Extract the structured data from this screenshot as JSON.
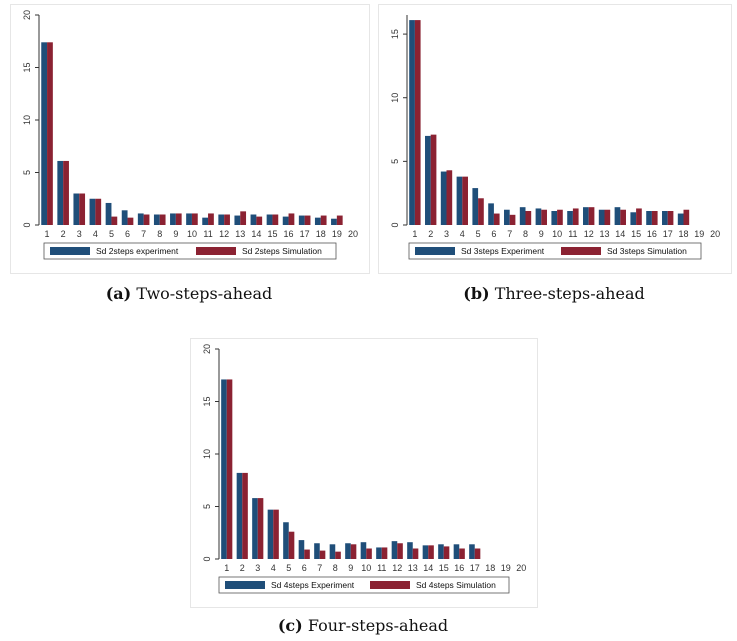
{
  "colors": {
    "experiment": "#1f4e79",
    "simulation": "#8b2232",
    "axis": "#333333"
  },
  "captions": [
    {
      "tag": "(a)",
      "text": "Two-steps-ahead"
    },
    {
      "tag": "(b)",
      "text": "Three-steps-ahead"
    },
    {
      "tag": "(c)",
      "text": "Four-steps-ahead"
    }
  ],
  "chart_data": [
    {
      "type": "bar",
      "categories": [
        "1",
        "2",
        "3",
        "4",
        "5",
        "6",
        "7",
        "8",
        "9",
        "10",
        "11",
        "12",
        "13",
        "14",
        "15",
        "16",
        "17",
        "18",
        "19",
        "20"
      ],
      "ylim": [
        0,
        20
      ],
      "yticks": [
        0,
        5,
        10,
        15,
        20
      ],
      "series": [
        {
          "name": "Sd 2steps experiment",
          "values": [
            17.4,
            6.1,
            3.0,
            2.5,
            2.1,
            1.4,
            1.1,
            1.0,
            1.1,
            1.1,
            0.7,
            1.0,
            0.9,
            1.0,
            1.0,
            0.8,
            0.9,
            0.7,
            0.6,
            null
          ]
        },
        {
          "name": "Sd 2steps Simulation",
          "values": [
            17.4,
            6.1,
            3.0,
            2.5,
            0.8,
            0.7,
            1.0,
            1.0,
            1.1,
            1.1,
            1.1,
            1.0,
            1.3,
            0.8,
            1.0,
            1.1,
            0.9,
            0.9,
            0.9,
            null
          ]
        }
      ]
    },
    {
      "type": "bar",
      "categories": [
        "1",
        "2",
        "3",
        "4",
        "5",
        "6",
        "7",
        "8",
        "9",
        "10",
        "11",
        "12",
        "13",
        "14",
        "15",
        "16",
        "17",
        "18",
        "19",
        "20"
      ],
      "ylim": [
        0,
        16.5
      ],
      "yticks": [
        0,
        5,
        10,
        15
      ],
      "series": [
        {
          "name": "Sd 3steps Experiment",
          "values": [
            16.1,
            7.0,
            4.2,
            3.8,
            2.9,
            1.7,
            1.2,
            1.4,
            1.3,
            1.1,
            1.1,
            1.4,
            1.2,
            1.4,
            1.0,
            1.1,
            1.1,
            0.9,
            null,
            null
          ]
        },
        {
          "name": "Sd 3steps Simulation",
          "values": [
            16.1,
            7.1,
            4.3,
            3.8,
            2.1,
            0.9,
            0.8,
            1.1,
            1.2,
            1.2,
            1.3,
            1.4,
            1.2,
            1.2,
            1.3,
            1.1,
            1.1,
            1.2,
            null,
            null
          ]
        }
      ]
    },
    {
      "type": "bar",
      "categories": [
        "1",
        "2",
        "3",
        "4",
        "5",
        "6",
        "7",
        "8",
        "9",
        "10",
        "11",
        "12",
        "13",
        "14",
        "15",
        "16",
        "17",
        "18",
        "19",
        "20"
      ],
      "ylim": [
        0,
        20
      ],
      "yticks": [
        0,
        5,
        10,
        15,
        20
      ],
      "series": [
        {
          "name": "Sd 4steps Experiment",
          "values": [
            17.1,
            8.2,
            5.8,
            4.7,
            3.5,
            1.8,
            1.5,
            1.4,
            1.5,
            1.6,
            1.1,
            1.7,
            1.6,
            1.3,
            1.4,
            1.4,
            1.4,
            null,
            null,
            null
          ]
        },
        {
          "name": "Sd 4steps Simulation",
          "values": [
            17.1,
            8.2,
            5.8,
            4.7,
            2.6,
            0.9,
            0.8,
            0.7,
            1.4,
            1.0,
            1.1,
            1.5,
            1.0,
            1.3,
            1.2,
            1.0,
            1.0,
            null,
            null,
            null
          ]
        }
      ]
    }
  ]
}
